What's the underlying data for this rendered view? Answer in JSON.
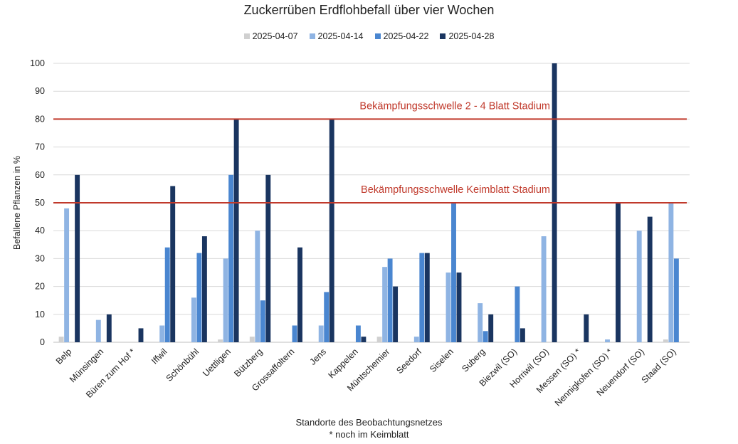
{
  "chart_data": {
    "type": "bar",
    "title": "Zuckerrüben Erdflohbefall über vier Wochen",
    "xlabel": "Standorte des Beobachtungsnetzes",
    "xlabel_note": "* noch im Keimblatt",
    "ylabel": "Befallene Pflanzen in %",
    "ylim": [
      0,
      100
    ],
    "yticks": [
      0,
      10,
      20,
      30,
      40,
      50,
      60,
      70,
      80,
      90,
      100
    ],
    "grid": true,
    "legend_position": "top",
    "categories": [
      "Belp",
      "Münsingen",
      "Büren zum Hof *",
      "Iffwil",
      "Schönbühl",
      "Uettligen",
      "Bützberg",
      "Grossaffoltern",
      "Jens",
      "Kappelen",
      "Müntschemier",
      "Seedorf",
      "Siselen",
      "Suberg",
      "Biezwil (SO)",
      "Horriwil (SO)",
      "Messen (SO) *",
      "Nennigkofen (SO) *",
      "Neuendorf (SO)",
      "Staad (SO)"
    ],
    "series": [
      {
        "name": "2025-04-07",
        "color": "#d0d0d0",
        "values": [
          2,
          0,
          0,
          0,
          0,
          1,
          2,
          0,
          0,
          0,
          2,
          0,
          0,
          0,
          0,
          0,
          0,
          0,
          0,
          1
        ]
      },
      {
        "name": "2025-04-14",
        "color": "#8fb4e3",
        "values": [
          48,
          8,
          0,
          6,
          16,
          30,
          40,
          0,
          6,
          0,
          27,
          2,
          25,
          14,
          0,
          38,
          0,
          1,
          40,
          50
        ]
      },
      {
        "name": "2025-04-22",
        "color": "#4a86d0",
        "values": [
          0,
          0,
          0,
          34,
          32,
          60,
          15,
          6,
          18,
          6,
          30,
          32,
          50,
          4,
          20,
          0,
          0,
          0,
          0,
          30
        ]
      },
      {
        "name": "2025-04-28",
        "color": "#1a3560",
        "values": [
          60,
          10,
          5,
          56,
          38,
          80,
          60,
          34,
          80,
          2,
          20,
          32,
          25,
          10,
          5,
          100,
          10,
          50,
          45,
          0
        ]
      }
    ],
    "threshold_lines": [
      {
        "value": 80,
        "label": "Bekämpfungsschwelle 2 - 4 Blatt Stadium",
        "color": "#c0392b"
      },
      {
        "value": 50,
        "label": "Bekämpfungsschwelle Keimblatt Stadium",
        "color": "#c0392b"
      }
    ]
  }
}
